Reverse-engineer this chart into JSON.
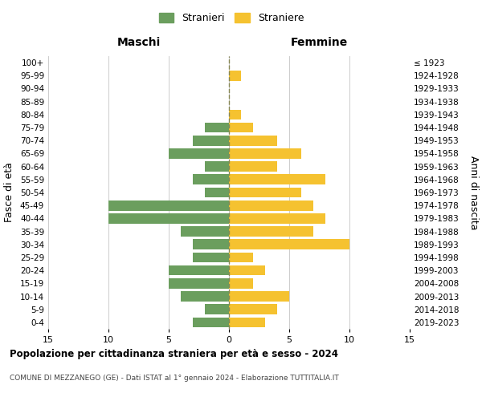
{
  "age_groups": [
    "0-4",
    "5-9",
    "10-14",
    "15-19",
    "20-24",
    "25-29",
    "30-34",
    "35-39",
    "40-44",
    "45-49",
    "50-54",
    "55-59",
    "60-64",
    "65-69",
    "70-74",
    "75-79",
    "80-84",
    "85-89",
    "90-94",
    "95-99",
    "100+"
  ],
  "birth_years": [
    "2019-2023",
    "2014-2018",
    "2009-2013",
    "2004-2008",
    "1999-2003",
    "1994-1998",
    "1989-1993",
    "1984-1988",
    "1979-1983",
    "1974-1978",
    "1969-1973",
    "1964-1968",
    "1959-1963",
    "1954-1958",
    "1949-1953",
    "1944-1948",
    "1939-1943",
    "1934-1938",
    "1929-1933",
    "1924-1928",
    "≤ 1923"
  ],
  "maschi": [
    3,
    2,
    4,
    5,
    5,
    3,
    3,
    4,
    10,
    10,
    2,
    3,
    2,
    5,
    3,
    2,
    0,
    0,
    0,
    0,
    0
  ],
  "femmine": [
    3,
    4,
    5,
    2,
    3,
    2,
    10,
    7,
    8,
    7,
    6,
    8,
    4,
    6,
    4,
    2,
    1,
    0,
    0,
    1,
    0
  ],
  "maschi_color": "#6b9e5e",
  "femmine_color": "#f5c230",
  "title": "Popolazione per cittadinanza straniera per età e sesso - 2024",
  "subtitle": "COMUNE DI MEZZANEGO (GE) - Dati ISTAT al 1° gennaio 2024 - Elaborazione TUTTITALIA.IT",
  "xlabel_left": "Maschi",
  "xlabel_right": "Femmine",
  "ylabel_left": "Fasce di età",
  "ylabel_right": "Anni di nascita",
  "legend_maschi": "Stranieri",
  "legend_femmine": "Straniere",
  "xlim": 15,
  "background_color": "#ffffff",
  "grid_color": "#cccccc"
}
